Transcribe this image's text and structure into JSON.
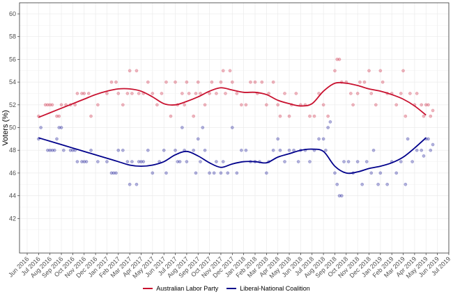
{
  "chart_data": {
    "type": "scatter",
    "title": "",
    "xlabel": "",
    "ylabel": "Voters (%)",
    "ylim": [
      38.9,
      61
    ],
    "yticks": [
      42,
      44,
      46,
      48,
      50,
      52,
      54,
      56,
      58,
      60
    ],
    "grid": true,
    "legend_position": "bottom",
    "categories": [
      "Jun 2016",
      "Jul 2016",
      "Aug 2016",
      "Sep 2016",
      "Oct 2016",
      "Nov 2016",
      "Dec 2016",
      "Jan 2017",
      "Feb 2017",
      "Mar 2017",
      "Apr 2017",
      "May 2017",
      "Jun 2017",
      "Jul 2017",
      "Aug 2017",
      "Sep 2017",
      "Oct 2017",
      "Nov 2017",
      "Dec 2017",
      "Jan 2018",
      "Feb 2018",
      "Mar 2018",
      "Apr 2018",
      "May 2018",
      "Jun 2018",
      "Jul 2018",
      "Aug 2018",
      "Sep 2018",
      "Oct 2018",
      "Nov 2018",
      "Dec 2018",
      "Jan 2019",
      "Feb 2019",
      "Mar 2019",
      "Apr 2019",
      "May 2019",
      "Jun 2019",
      "Jul 2019"
    ],
    "series": [
      {
        "name": "Australian Labor Party",
        "color": "#c8102e",
        "smooth": [
          [
            1,
            50.9
          ],
          [
            2,
            51.3
          ],
          [
            3,
            51.7
          ],
          [
            4,
            52.1
          ],
          [
            5,
            52.5
          ],
          [
            6,
            52.9
          ],
          [
            7,
            53.2
          ],
          [
            8,
            53.4
          ],
          [
            9,
            53.4
          ],
          [
            10,
            53.2
          ],
          [
            11,
            52.7
          ],
          [
            12,
            52.1
          ],
          [
            13,
            52.0
          ],
          [
            14,
            52.3
          ],
          [
            15,
            52.7
          ],
          [
            16,
            53.2
          ],
          [
            17,
            53.5
          ],
          [
            18,
            53.3
          ],
          [
            19,
            53.1
          ],
          [
            20,
            53.1
          ],
          [
            21,
            52.9
          ],
          [
            22,
            52.4
          ],
          [
            23,
            52.1
          ],
          [
            24,
            51.9
          ],
          [
            25,
            52.1
          ],
          [
            26,
            53.2
          ],
          [
            27,
            53.9
          ],
          [
            28,
            53.9
          ],
          [
            29,
            53.7
          ],
          [
            30,
            53.4
          ],
          [
            31,
            53.2
          ],
          [
            32,
            52.9
          ],
          [
            33,
            52.5
          ],
          [
            34,
            51.9
          ],
          [
            35,
            51.1
          ]
        ],
        "points": [
          [
            1,
            51
          ],
          [
            1.6,
            52
          ],
          [
            1.8,
            52
          ],
          [
            2,
            52
          ],
          [
            2.2,
            52
          ],
          [
            2.6,
            51
          ],
          [
            2.8,
            51
          ],
          [
            3,
            52
          ],
          [
            3.4,
            52
          ],
          [
            3.8,
            52
          ],
          [
            4.2,
            52
          ],
          [
            4.4,
            53
          ],
          [
            4.8,
            53
          ],
          [
            5,
            53
          ],
          [
            5.4,
            53
          ],
          [
            5.6,
            51
          ],
          [
            6.2,
            52
          ],
          [
            7,
            53
          ],
          [
            7.4,
            54
          ],
          [
            7.8,
            54
          ],
          [
            8,
            53
          ],
          [
            8.4,
            52
          ],
          [
            8.8,
            53
          ],
          [
            9,
            55
          ],
          [
            9.2,
            53
          ],
          [
            9.6,
            55
          ],
          [
            9.8,
            53
          ],
          [
            10.2,
            53
          ],
          [
            10.6,
            54
          ],
          [
            11,
            53
          ],
          [
            11.4,
            52
          ],
          [
            11.8,
            53
          ],
          [
            12.2,
            54
          ],
          [
            12.6,
            51
          ],
          [
            13,
            54
          ],
          [
            13.2,
            52
          ],
          [
            13.6,
            53
          ],
          [
            13.8,
            52
          ],
          [
            14,
            54
          ],
          [
            14.2,
            53
          ],
          [
            14.6,
            51
          ],
          [
            14.8,
            53
          ],
          [
            15,
            54
          ],
          [
            15.2,
            53
          ],
          [
            15.6,
            52
          ],
          [
            16,
            53
          ],
          [
            16.2,
            54
          ],
          [
            16.6,
            53
          ],
          [
            17,
            54
          ],
          [
            17.2,
            55
          ],
          [
            17.4,
            53
          ],
          [
            17.8,
            55
          ],
          [
            18,
            54
          ],
          [
            18.4,
            53
          ],
          [
            18.8,
            52
          ],
          [
            19.2,
            52
          ],
          [
            19.6,
            54
          ],
          [
            20,
            54
          ],
          [
            20.2,
            53
          ],
          [
            20.6,
            54
          ],
          [
            21,
            52
          ],
          [
            21.2,
            53
          ],
          [
            21.6,
            54
          ],
          [
            22,
            52
          ],
          [
            22.2,
            51
          ],
          [
            22.6,
            53
          ],
          [
            23,
            51
          ],
          [
            23.2,
            52
          ],
          [
            23.6,
            53
          ],
          [
            24,
            52
          ],
          [
            24.4,
            52
          ],
          [
            24.8,
            51
          ],
          [
            25.2,
            51
          ],
          [
            25.6,
            53
          ],
          [
            26,
            52
          ],
          [
            26.4,
            51
          ],
          [
            27,
            55
          ],
          [
            27.2,
            56
          ],
          [
            27.4,
            56
          ],
          [
            27.6,
            54
          ],
          [
            28,
            54
          ],
          [
            28.4,
            53
          ],
          [
            28.6,
            52
          ],
          [
            29,
            53
          ],
          [
            29.2,
            54
          ],
          [
            29.6,
            54
          ],
          [
            30,
            55
          ],
          [
            30.2,
            53
          ],
          [
            30.6,
            52
          ],
          [
            31,
            55
          ],
          [
            31.2,
            54
          ],
          [
            31.6,
            53
          ],
          [
            32,
            53
          ],
          [
            32.4,
            52
          ],
          [
            32.8,
            53
          ],
          [
            33,
            55
          ],
          [
            33.2,
            51
          ],
          [
            33.6,
            53
          ],
          [
            34,
            52
          ],
          [
            34.2,
            53
          ],
          [
            34.6,
            52
          ],
          [
            34.8,
            51
          ],
          [
            35,
            52
          ],
          [
            35.2,
            52
          ],
          [
            35.4,
            51
          ],
          [
            35.6,
            51.5
          ]
        ]
      },
      {
        "name": "Liberal-National Coalition",
        "color": "#00008b",
        "smooth": [
          [
            1,
            49.1
          ],
          [
            2,
            48.8
          ],
          [
            3,
            48.5
          ],
          [
            4,
            48.2
          ],
          [
            5,
            47.9
          ],
          [
            6,
            47.6
          ],
          [
            7,
            47.3
          ],
          [
            8,
            47.0
          ],
          [
            9,
            46.7
          ],
          [
            10,
            46.6
          ],
          [
            11,
            46.7
          ],
          [
            12,
            47.0
          ],
          [
            13,
            47.6
          ],
          [
            14,
            47.9
          ],
          [
            15,
            47.5
          ],
          [
            16,
            46.9
          ],
          [
            17,
            46.5
          ],
          [
            18,
            46.8
          ],
          [
            19,
            47.0
          ],
          [
            20,
            47.0
          ],
          [
            21,
            46.9
          ],
          [
            22,
            47.4
          ],
          [
            23,
            47.7
          ],
          [
            24,
            48.0
          ],
          [
            25,
            48.1
          ],
          [
            26,
            47.9
          ],
          [
            27,
            46.6
          ],
          [
            28,
            46.0
          ],
          [
            29,
            46.1
          ],
          [
            30,
            46.4
          ],
          [
            31,
            46.6
          ],
          [
            32,
            46.9
          ],
          [
            33,
            47.4
          ],
          [
            34,
            48.2
          ],
          [
            35,
            49.1
          ]
        ],
        "points": [
          [
            1,
            49
          ],
          [
            1.2,
            50
          ],
          [
            1.8,
            48
          ],
          [
            2,
            48
          ],
          [
            2.2,
            48
          ],
          [
            2.4,
            48
          ],
          [
            2.6,
            49
          ],
          [
            2.8,
            50
          ],
          [
            3,
            50
          ],
          [
            3.2,
            48
          ],
          [
            3.8,
            48
          ],
          [
            4,
            48
          ],
          [
            4.2,
            48
          ],
          [
            4.4,
            47
          ],
          [
            4.8,
            47
          ],
          [
            5,
            47
          ],
          [
            5.2,
            47
          ],
          [
            5.6,
            48
          ],
          [
            6.2,
            47
          ],
          [
            7,
            47
          ],
          [
            7.4,
            46
          ],
          [
            7.6,
            46
          ],
          [
            7.8,
            46
          ],
          [
            8,
            48
          ],
          [
            8.4,
            48
          ],
          [
            8.8,
            47
          ],
          [
            9,
            45
          ],
          [
            9.2,
            47
          ],
          [
            9.6,
            45
          ],
          [
            9.8,
            47
          ],
          [
            10,
            47
          ],
          [
            10.2,
            47
          ],
          [
            10.6,
            48
          ],
          [
            11,
            46
          ],
          [
            11.6,
            47
          ],
          [
            12,
            48
          ],
          [
            12.2,
            46
          ],
          [
            13,
            48
          ],
          [
            13.2,
            47
          ],
          [
            13.4,
            47
          ],
          [
            13.6,
            50
          ],
          [
            13.8,
            48
          ],
          [
            14,
            47
          ],
          [
            14.6,
            48
          ],
          [
            14.8,
            46
          ],
          [
            15,
            49
          ],
          [
            15.2,
            47
          ],
          [
            15.4,
            50
          ],
          [
            15.6,
            48
          ],
          [
            16,
            46
          ],
          [
            16.4,
            46
          ],
          [
            16.6,
            47
          ],
          [
            17,
            46
          ],
          [
            17.2,
            47
          ],
          [
            17.6,
            46
          ],
          [
            18,
            50
          ],
          [
            18.4,
            46
          ],
          [
            18.8,
            48
          ],
          [
            19.2,
            48
          ],
          [
            19.6,
            47
          ],
          [
            20,
            47
          ],
          [
            20.4,
            47
          ],
          [
            21,
            46
          ],
          [
            21.2,
            47
          ],
          [
            21.6,
            48
          ],
          [
            22,
            49
          ],
          [
            22.2,
            48
          ],
          [
            22.6,
            47
          ],
          [
            23,
            48
          ],
          [
            23.4,
            48
          ],
          [
            23.8,
            47
          ],
          [
            24,
            48
          ],
          [
            24.4,
            48
          ],
          [
            24.8,
            47
          ],
          [
            25.2,
            48
          ],
          [
            25.6,
            49
          ],
          [
            26,
            49
          ],
          [
            26.2,
            48
          ],
          [
            26.4,
            50
          ],
          [
            26.6,
            50.5
          ],
          [
            27,
            46
          ],
          [
            27.2,
            45
          ],
          [
            27.4,
            44
          ],
          [
            27.6,
            44
          ],
          [
            27.8,
            47
          ],
          [
            28.2,
            47
          ],
          [
            28.6,
            46
          ],
          [
            29,
            47
          ],
          [
            29.4,
            45
          ],
          [
            29.8,
            47
          ],
          [
            30.2,
            46
          ],
          [
            30.4,
            48
          ],
          [
            30.8,
            45
          ],
          [
            31,
            46
          ],
          [
            31.6,
            45
          ],
          [
            32,
            47
          ],
          [
            32.4,
            46
          ],
          [
            32.8,
            47
          ],
          [
            33.2,
            45
          ],
          [
            33.4,
            49
          ],
          [
            33.8,
            47
          ],
          [
            34.2,
            48
          ],
          [
            34.6,
            48
          ],
          [
            34.8,
            47.5
          ],
          [
            35,
            49
          ],
          [
            35.2,
            49
          ],
          [
            35.4,
            48
          ],
          [
            35.6,
            48.5
          ]
        ]
      }
    ]
  },
  "legend": {
    "items": [
      {
        "label": "Australian Labor Party",
        "color": "#c8102e"
      },
      {
        "label": "Liberal-National Coalition",
        "color": "#00008b"
      }
    ]
  }
}
